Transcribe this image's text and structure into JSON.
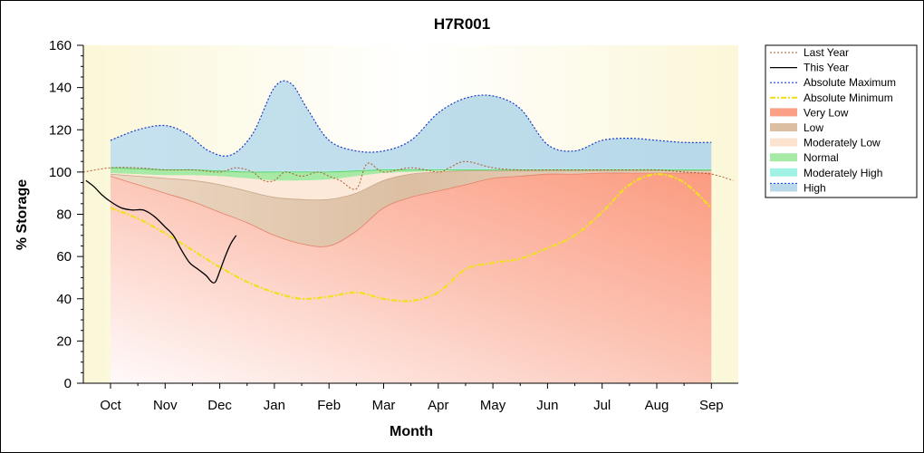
{
  "chart_data": {
    "type": "area",
    "title": "H7R001",
    "xlabel": "Month",
    "ylabel": "% Storage",
    "ylim": [
      0,
      160
    ],
    "xlim": [
      0,
      12
    ],
    "yticks": [
      0,
      20,
      40,
      60,
      80,
      100,
      120,
      140,
      160
    ],
    "categories": [
      "Oct",
      "Nov",
      "Dec",
      "Jan",
      "Feb",
      "Mar",
      "Apr",
      "May",
      "Jun",
      "Jul",
      "Aug",
      "Sep"
    ],
    "legend_position": "right",
    "legend": [
      "Last Year",
      "This Year",
      "Absolute Maximum",
      "Absolute Minimum",
      "Very Low",
      "Low",
      "Moderately Low",
      "Normal",
      "Moderately High",
      "High"
    ],
    "bands_x": [
      0,
      0.5,
      1,
      1.5,
      2,
      2.5,
      3,
      3.5,
      4,
      4.5,
      5,
      5.5,
      6,
      6.5,
      7,
      7.5,
      8,
      8.5,
      9,
      9.5,
      10,
      10.5,
      11
    ],
    "bands": {
      "very_low_top": [
        98,
        94,
        90,
        86,
        81,
        76,
        70,
        66,
        65,
        72,
        83,
        88,
        91,
        94,
        97,
        98,
        99,
        99,
        99.5,
        99.5,
        99.5,
        99.5,
        99.5
      ],
      "low_top": [
        99,
        98,
        97,
        96,
        94,
        91,
        88,
        87,
        87,
        90,
        96,
        99,
        100,
        100.5,
        100.5,
        100.5,
        100.5,
        100.5,
        100.5,
        100.5,
        100.5,
        100.5,
        100.5
      ],
      "moderately_low_top": [
        99.5,
        99,
        98.5,
        98.5,
        98,
        97,
        96,
        96,
        96.5,
        98,
        99.5,
        100,
        100.5,
        100.5,
        100.5,
        100.5,
        100.5,
        100.5,
        100.5,
        100.5,
        100.5,
        100.5,
        100.5
      ],
      "normal_top": [
        102,
        101.5,
        101,
        101,
        100.5,
        100,
        100,
        100,
        100,
        100.5,
        101,
        101,
        101,
        101,
        101,
        101,
        101,
        101,
        101,
        101,
        101,
        101,
        101
      ],
      "moderately_high_top": [
        102.5,
        102,
        101.5,
        101.5,
        101,
        100.5,
        100.5,
        100.5,
        100.5,
        101,
        101.5,
        101.5,
        101.5,
        101.5,
        101.5,
        101.5,
        101.5,
        101.5,
        101.5,
        101.5,
        101.5,
        101.5,
        101.5
      ]
    },
    "series": [
      {
        "name": "Absolute Maximum",
        "x": [
          0,
          0.5,
          1,
          1.4,
          1.8,
          2.2,
          2.6,
          3.0,
          3.3,
          3.6,
          4.0,
          4.5,
          5.0,
          5.5,
          6.0,
          6.5,
          7.0,
          7.5,
          8.0,
          8.5,
          9.0,
          9.5,
          10.0,
          10.5,
          11.0
        ],
        "values": [
          115,
          120,
          122,
          118,
          110,
          108,
          118,
          140,
          142,
          130,
          115,
          110,
          110,
          115,
          128,
          135,
          136,
          130,
          113,
          110,
          115,
          116,
          115,
          114,
          114
        ]
      },
      {
        "name": "Absolute Minimum",
        "x": [
          0,
          0.5,
          1,
          1.5,
          2,
          2.5,
          3,
          3.5,
          4,
          4.5,
          5,
          5.5,
          6,
          6.5,
          7,
          7.5,
          8,
          8.5,
          9,
          9.5,
          10,
          10.5,
          11
        ],
        "values": [
          83,
          78,
          71,
          63,
          55,
          48,
          43,
          40,
          41,
          43,
          40,
          39,
          43,
          54,
          57,
          59,
          64,
          70,
          81,
          94,
          99,
          95,
          83
        ]
      },
      {
        "name": "Last Year",
        "x": [
          -0.5,
          0,
          0.5,
          1,
          1.5,
          2,
          2.3,
          2.6,
          2.8,
          3.0,
          3.2,
          3.5,
          3.8,
          4.0,
          4.2,
          4.5,
          4.7,
          5.0,
          5.5,
          6.0,
          6.2,
          6.5,
          7.0,
          7.5,
          8.0,
          8.5,
          9.0,
          9.5,
          10.0,
          10.5,
          11.0,
          11.4
        ],
        "values": [
          100,
          102,
          102,
          101,
          101,
          100,
          102,
          100,
          96,
          96,
          100,
          98,
          100,
          98,
          96,
          92,
          104,
          100,
          102,
          100,
          102,
          105,
          102,
          101,
          101,
          101,
          101,
          101,
          101,
          100,
          99,
          96
        ]
      },
      {
        "name": "This Year",
        "x": [
          -0.45,
          -0.3,
          -0.15,
          0,
          0.2,
          0.4,
          0.6,
          0.8,
          1.0,
          1.15,
          1.3,
          1.45,
          1.6,
          1.75,
          1.85,
          1.92,
          2.0,
          2.1,
          2.2,
          2.3
        ],
        "values": [
          96,
          93,
          89,
          86,
          83,
          82,
          82,
          79,
          74,
          70,
          63,
          57,
          54,
          51,
          48,
          48,
          53,
          60,
          66,
          70
        ]
      }
    ]
  }
}
